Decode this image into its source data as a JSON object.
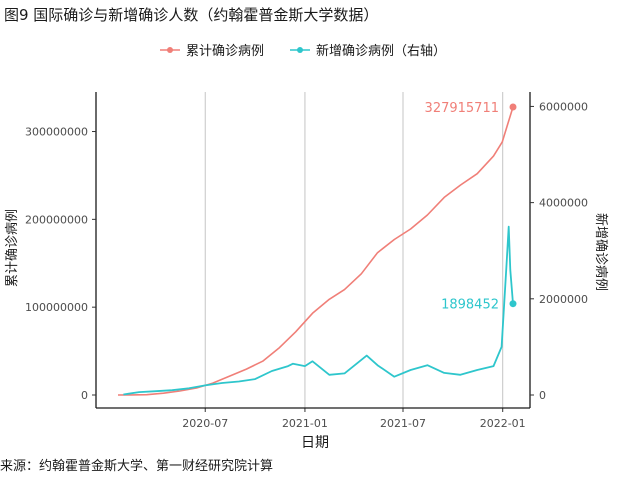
{
  "chart_data": {
    "type": "line",
    "title": "图9 国际确诊与新增确诊人数（约翰霍普金斯大学数据）",
    "xlabel": "日期",
    "ylabel_left": "累计确诊病例",
    "ylabel_right": "新增确诊病例",
    "source": "来源：约翰霍普金斯大学、第一财经研究院计算",
    "legend_position": "top",
    "grid": "vertical major lines only",
    "x_ticks": [
      "2020-07",
      "2021-01",
      "2021-07",
      "2022-01"
    ],
    "x_tick_dates": [
      "2020-07-01",
      "2021-01-01",
      "2021-07-01",
      "2022-01-01"
    ],
    "xlim": [
      "2020-01-22",
      "2022-01-20"
    ],
    "y_left_ticks": [
      "0",
      "100000000",
      "200000000",
      "300000000"
    ],
    "y_left_tick_values": [
      0,
      100000000,
      200000000,
      300000000
    ],
    "y_left_lim": [
      0,
      345000000
    ],
    "y_right_ticks": [
      "0",
      "2000000",
      "4000000",
      "6000000"
    ],
    "y_right_tick_values": [
      0,
      2000000,
      4000000,
      6000000
    ],
    "y_right_lim": [
      0,
      6300000
    ],
    "series": [
      {
        "name": "累计确诊病例",
        "axis": "left",
        "color": "#f07f78",
        "end_label": "327915711",
        "end_value": 327915711,
        "x": [
          "2020-01-22",
          "2020-02-15",
          "2020-03-15",
          "2020-04-15",
          "2020-05-15",
          "2020-06-15",
          "2020-07-15",
          "2020-08-15",
          "2020-09-15",
          "2020-10-15",
          "2020-11-15",
          "2020-12-15",
          "2021-01-15",
          "2021-02-15",
          "2021-03-15",
          "2021-04-15",
          "2021-05-15",
          "2021-06-15",
          "2021-07-15",
          "2021-08-15",
          "2021-09-15",
          "2021-10-15",
          "2021-11-15",
          "2021-12-15",
          "2021-12-31",
          "2022-01-10",
          "2022-01-20"
        ],
        "y": [
          600,
          70000,
          300000,
          2000000,
          4500000,
          8000000,
          13500000,
          21500000,
          29500000,
          38500000,
          54000000,
          72000000,
          93000000,
          109000000,
          120000000,
          138000000,
          162000000,
          177000000,
          189000000,
          205000000,
          225000000,
          239000000,
          252000000,
          272000000,
          288000000,
          308000000,
          327915711
        ]
      },
      {
        "name": "新增确诊病例（右轴）",
        "axis": "right",
        "color": "#2ec6cc",
        "end_label": "1898452",
        "end_value": 1898452,
        "x": [
          "2020-02-01",
          "2020-03-01",
          "2020-04-01",
          "2020-05-01",
          "2020-06-01",
          "2020-07-01",
          "2020-08-01",
          "2020-09-01",
          "2020-10-01",
          "2020-11-01",
          "2020-12-01",
          "2020-12-10",
          "2021-01-01",
          "2021-01-15",
          "2021-02-15",
          "2021-03-15",
          "2021-04-25",
          "2021-05-15",
          "2021-06-15",
          "2021-07-15",
          "2021-08-15",
          "2021-09-15",
          "2021-10-15",
          "2021-11-15",
          "2021-12-15",
          "2021-12-30",
          "2022-01-08",
          "2022-01-12",
          "2022-01-15",
          "2022-01-20"
        ],
        "y": [
          10000,
          60000,
          80000,
          100000,
          140000,
          200000,
          250000,
          280000,
          330000,
          500000,
          600000,
          650000,
          600000,
          700000,
          420000,
          450000,
          820000,
          620000,
          380000,
          520000,
          620000,
          460000,
          420000,
          520000,
          600000,
          1000000,
          2700000,
          3500000,
          2600000,
          1898452
        ]
      }
    ]
  }
}
